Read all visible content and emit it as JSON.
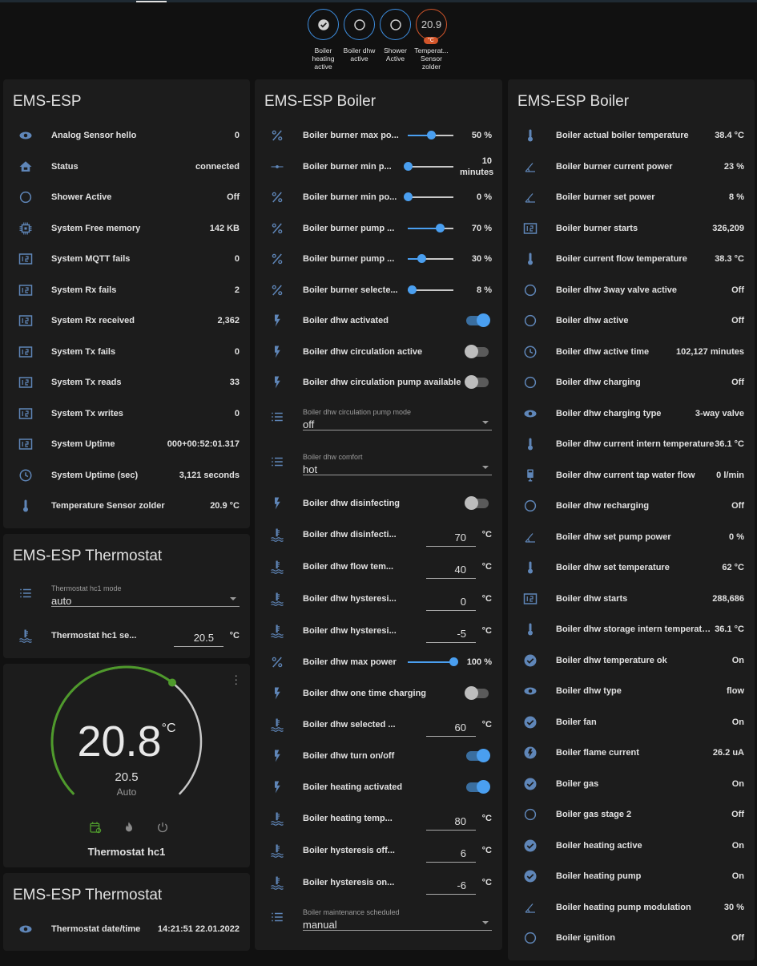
{
  "header": {
    "badges": [
      {
        "label": "Boiler heating active",
        "icon": "check-circle",
        "state": "on"
      },
      {
        "label": "Boiler dhw active",
        "icon": "circle-outline",
        "state": "off"
      },
      {
        "label": "Shower Active",
        "icon": "circle-outline",
        "state": "off"
      },
      {
        "label": "Temperat... Sensor zolder",
        "value": "20.9",
        "unit": "°C"
      }
    ]
  },
  "colors": {
    "accent": "#4a9ff0",
    "icon": "#5f86b8",
    "heat": "#4f9a2c",
    "badge_temp": "#d2552a"
  },
  "col1": [
    {
      "title": "EMS-ESP",
      "rows": [
        {
          "type": "sensor",
          "icon": "eye",
          "label": "Analog Sensor hello",
          "value": "0"
        },
        {
          "type": "sensor",
          "icon": "home",
          "label": "Status",
          "value": "connected"
        },
        {
          "type": "sensor",
          "icon": "circle",
          "label": "Shower Active",
          "value": "Off"
        },
        {
          "type": "sensor",
          "icon": "chip",
          "label": "System Free memory",
          "value": "142 KB"
        },
        {
          "type": "sensor",
          "icon": "counter",
          "label": "System MQTT fails",
          "value": "0"
        },
        {
          "type": "sensor",
          "icon": "counter",
          "label": "System Rx fails",
          "value": "2"
        },
        {
          "type": "sensor",
          "icon": "counter",
          "label": "System Rx received",
          "value": "2,362"
        },
        {
          "type": "sensor",
          "icon": "counter",
          "label": "System Tx fails",
          "value": "0"
        },
        {
          "type": "sensor",
          "icon": "counter",
          "label": "System Tx reads",
          "value": "33"
        },
        {
          "type": "sensor",
          "icon": "counter",
          "label": "System Tx writes",
          "value": "0"
        },
        {
          "type": "sensor",
          "icon": "counter",
          "label": "System Uptime",
          "value": "000+00:52:01.317"
        },
        {
          "type": "sensor",
          "icon": "clock",
          "label": "System Uptime (sec)",
          "value": "3,121 seconds"
        },
        {
          "type": "sensor",
          "icon": "thermometer",
          "label": "Temperature Sensor zolder",
          "value": "20.9 °C"
        }
      ]
    },
    {
      "title": "EMS-ESP Thermostat",
      "rows": [
        {
          "type": "select",
          "icon": "list",
          "label": "Thermostat hc1 mode",
          "value": "auto"
        },
        {
          "type": "number",
          "icon": "water-thermometer",
          "label": "Thermostat hc1 se...",
          "value": "20.5",
          "unit": "°C"
        }
      ]
    }
  ],
  "thermostat": {
    "current": "20.8",
    "unit": "°C",
    "target": "20.5",
    "target_fraction": 0.64,
    "mode": "Auto",
    "name": "Thermostat hc1",
    "modes": [
      "calendar-sync",
      "fire",
      "power"
    ],
    "active_mode": "calendar-sync"
  },
  "col1b": [
    {
      "title": "EMS-ESP Thermostat",
      "rows": [
        {
          "type": "sensor",
          "icon": "eye",
          "label": "Thermostat date/time",
          "value": "14:21:51 22.01.2022"
        }
      ]
    }
  ],
  "col2": [
    {
      "title": "EMS-ESP Boiler",
      "rows": [
        {
          "type": "slider",
          "icon": "percent",
          "label": "Boiler burner max po...",
          "value": "50 %",
          "level": 0.5
        },
        {
          "type": "slider",
          "icon": "dash-dot",
          "label": "Boiler burner min p...",
          "value": "10 minutes",
          "level": 0
        },
        {
          "type": "slider",
          "icon": "percent",
          "label": "Boiler burner min po...",
          "value": "0 %",
          "level": 0
        },
        {
          "type": "slider",
          "icon": "percent",
          "label": "Boiler burner pump ...",
          "value": "70 %",
          "level": 0.7
        },
        {
          "type": "slider",
          "icon": "percent",
          "label": "Boiler burner pump ...",
          "value": "30 %",
          "level": 0.3
        },
        {
          "type": "slider",
          "icon": "percent",
          "label": "Boiler burner selecte...",
          "value": "8 %",
          "level": 0.08
        },
        {
          "type": "toggle",
          "icon": "bolt",
          "label": "Boiler dhw activated",
          "on": true
        },
        {
          "type": "toggle",
          "icon": "bolt",
          "label": "Boiler dhw circulation active",
          "on": false
        },
        {
          "type": "toggle",
          "icon": "bolt",
          "label": "Boiler dhw circulation pump available",
          "on": false
        },
        {
          "type": "select",
          "icon": "list",
          "label": "Boiler dhw circulation pump mode",
          "value": "off"
        },
        {
          "type": "select",
          "icon": "list",
          "label": "Boiler dhw comfort",
          "value": "hot"
        },
        {
          "type": "toggle",
          "icon": "bolt",
          "label": "Boiler dhw disinfecting",
          "on": false
        },
        {
          "type": "number",
          "icon": "water-thermometer",
          "label": "Boiler dhw disinfecti...",
          "value": "70",
          "unit": "°C"
        },
        {
          "type": "number",
          "icon": "water-thermometer",
          "label": "Boiler dhw flow tem...",
          "value": "40",
          "unit": "°C"
        },
        {
          "type": "number",
          "icon": "water-thermometer",
          "label": "Boiler dhw hysteresi...",
          "value": "0",
          "unit": "°C"
        },
        {
          "type": "number",
          "icon": "water-thermometer",
          "label": "Boiler dhw hysteresi...",
          "value": "-5",
          "unit": "°C"
        },
        {
          "type": "slider",
          "icon": "percent",
          "label": "Boiler dhw max power",
          "value": "100 %",
          "level": 1
        },
        {
          "type": "toggle",
          "icon": "bolt",
          "label": "Boiler dhw one time charging",
          "on": false
        },
        {
          "type": "number",
          "icon": "water-thermometer",
          "label": "Boiler dhw selected ...",
          "value": "60",
          "unit": "°C"
        },
        {
          "type": "toggle",
          "icon": "bolt",
          "label": "Boiler dhw turn on/off",
          "on": true
        },
        {
          "type": "toggle",
          "icon": "bolt",
          "label": "Boiler heating activated",
          "on": true
        },
        {
          "type": "number",
          "icon": "water-thermometer",
          "label": "Boiler heating temp...",
          "value": "80",
          "unit": "°C"
        },
        {
          "type": "number",
          "icon": "water-thermometer",
          "label": "Boiler hysteresis off...",
          "value": "6",
          "unit": "°C"
        },
        {
          "type": "number",
          "icon": "water-thermometer",
          "label": "Boiler hysteresis on...",
          "value": "-6",
          "unit": "°C"
        },
        {
          "type": "select",
          "icon": "list",
          "label": "Boiler maintenance scheduled",
          "value": "manual"
        }
      ]
    }
  ],
  "col3": [
    {
      "title": "EMS-ESP Boiler",
      "rows": [
        {
          "type": "sensor",
          "icon": "thermometer",
          "label": "Boiler actual boiler temperature",
          "value": "38.4 °C"
        },
        {
          "type": "sensor",
          "icon": "angle",
          "label": "Boiler burner current power",
          "value": "23 %"
        },
        {
          "type": "sensor",
          "icon": "angle",
          "label": "Boiler burner set power",
          "value": "8 %"
        },
        {
          "type": "sensor",
          "icon": "counter",
          "label": "Boiler burner starts",
          "value": "326,209"
        },
        {
          "type": "sensor",
          "icon": "thermometer",
          "label": "Boiler current flow temperature",
          "value": "38.3 °C"
        },
        {
          "type": "sensor",
          "icon": "circle",
          "label": "Boiler dhw 3way valve active",
          "value": "Off"
        },
        {
          "type": "sensor",
          "icon": "circle",
          "label": "Boiler dhw active",
          "value": "Off"
        },
        {
          "type": "sensor",
          "icon": "clock",
          "label": "Boiler dhw active time",
          "value": "102,127 minutes"
        },
        {
          "type": "sensor",
          "icon": "circle",
          "label": "Boiler dhw charging",
          "value": "Off"
        },
        {
          "type": "sensor",
          "icon": "eye",
          "label": "Boiler dhw charging type",
          "value": "3-way valve"
        },
        {
          "type": "sensor",
          "icon": "thermometer",
          "label": "Boiler dhw current intern temperature",
          "value": "36.1 °C"
        },
        {
          "type": "sensor",
          "icon": "tap",
          "label": "Boiler dhw current tap water flow",
          "value": "0 l/min"
        },
        {
          "type": "sensor",
          "icon": "circle",
          "label": "Boiler dhw recharging",
          "value": "Off"
        },
        {
          "type": "sensor",
          "icon": "angle",
          "label": "Boiler dhw set pump power",
          "value": "0 %"
        },
        {
          "type": "sensor",
          "icon": "thermometer",
          "label": "Boiler dhw set temperature",
          "value": "62 °C"
        },
        {
          "type": "sensor",
          "icon": "counter",
          "label": "Boiler dhw starts",
          "value": "288,686"
        },
        {
          "type": "sensor",
          "icon": "thermometer",
          "label": "Boiler dhw storage intern temperature",
          "value": "36.1 °C"
        },
        {
          "type": "sensor",
          "icon": "check-circle",
          "label": "Boiler dhw temperature ok",
          "value": "On"
        },
        {
          "type": "sensor",
          "icon": "eye",
          "label": "Boiler dhw type",
          "value": "flow"
        },
        {
          "type": "sensor",
          "icon": "check-circle",
          "label": "Boiler fan",
          "value": "On"
        },
        {
          "type": "sensor",
          "icon": "flash-circle",
          "label": "Boiler flame current",
          "value": "26.2 uA"
        },
        {
          "type": "sensor",
          "icon": "check-circle",
          "label": "Boiler gas",
          "value": "On"
        },
        {
          "type": "sensor",
          "icon": "circle",
          "label": "Boiler gas stage 2",
          "value": "Off"
        },
        {
          "type": "sensor",
          "icon": "check-circle",
          "label": "Boiler heating active",
          "value": "On"
        },
        {
          "type": "sensor",
          "icon": "check-circle",
          "label": "Boiler heating pump",
          "value": "On"
        },
        {
          "type": "sensor",
          "icon": "angle",
          "label": "Boiler heating pump modulation",
          "value": "30 %"
        },
        {
          "type": "sensor",
          "icon": "circle",
          "label": "Boiler ignition",
          "value": "Off"
        }
      ]
    }
  ]
}
